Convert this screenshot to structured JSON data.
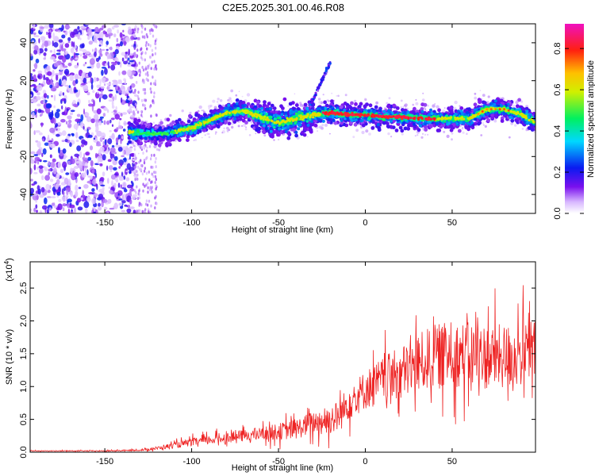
{
  "title": "C2E5.2025.301.00.46.R08",
  "chart_data": [
    {
      "type": "heatmap",
      "title": "C2E5.2025.301.00.46.R08",
      "xlabel": "Height of straight line (km)",
      "ylabel": "Frequency (Hz)",
      "xlim": [
        -193,
        98
      ],
      "ylim": [
        -50,
        50
      ],
      "xticks": [
        -150,
        -100,
        -50,
        0,
        50
      ],
      "xtick_labels": [
        "-150",
        "-100",
        "-50",
        "0",
        "50"
      ],
      "yticks": [
        -40,
        -20,
        0,
        20,
        40
      ],
      "ytick_labels": [
        "-40",
        "-20",
        "0",
        "20",
        "40"
      ],
      "colorbar": {
        "label": "Normalized spectral amplitude",
        "range": [
          0,
          0.92
        ],
        "ticks": [
          0.0,
          0.2,
          0.4,
          0.6,
          0.8
        ],
        "tick_labels": [
          "0.0",
          "0.2",
          "0.4",
          "0.6",
          "0.8"
        ]
      },
      "ridge": {
        "x": [
          -135,
          -125,
          -115,
          -100,
          -90,
          -80,
          -70,
          -60,
          -50,
          -40,
          -30,
          -20,
          -10,
          0,
          10,
          20,
          30,
          40,
          50,
          60,
          70,
          80,
          90,
          98
        ],
        "y": [
          -7,
          -8,
          -8,
          -5,
          -1,
          3,
          4,
          1,
          -2,
          0,
          2,
          3,
          2,
          2,
          1,
          1,
          0,
          0,
          0,
          0,
          5,
          5,
          2,
          -2
        ]
      },
      "note": "noisy speckle region for heights below about -130 km; weak branch near -25 km rising to ~30 Hz"
    },
    {
      "type": "line",
      "xlabel": "Height of straight line (km)",
      "ylabel": "SNR (10 * v/v)",
      "scale_label": "(x10",
      "scale_exp": "4",
      "scale_suffix": ")",
      "xlim": [
        -193,
        98
      ],
      "ylim": [
        0,
        2.9
      ],
      "xticks": [
        -150,
        -100,
        -50,
        0,
        50
      ],
      "xtick_labels": [
        "-150",
        "-100",
        "-50",
        "0",
        "50"
      ],
      "yticks": [
        0.0,
        0.5,
        1.0,
        1.5,
        2.0,
        2.5
      ],
      "ytick_labels": [
        "0.0",
        "0.5",
        "1.0",
        "1.5",
        "2.0",
        "2.5"
      ],
      "color": "#ee2222",
      "trend": {
        "x": [
          -193,
          -150,
          -130,
          -120,
          -100,
          -80,
          -60,
          -40,
          -30,
          -20,
          -15,
          -10,
          0,
          10,
          20,
          30,
          40,
          50,
          60,
          70,
          80,
          90,
          98
        ],
        "y": [
          0.02,
          0.02,
          0.03,
          0.06,
          0.15,
          0.22,
          0.28,
          0.35,
          0.45,
          0.5,
          0.55,
          0.75,
          0.95,
          1.1,
          1.2,
          1.35,
          1.45,
          1.5,
          1.48,
          1.45,
          1.45,
          1.5,
          1.55
        ]
      },
      "noise_amplitude": {
        "x": [
          -193,
          -130,
          -100,
          -60,
          -30,
          -15,
          0,
          20,
          40,
          98
        ],
        "a": [
          0.005,
          0.01,
          0.06,
          0.1,
          0.18,
          0.25,
          0.3,
          0.4,
          0.5,
          0.5
        ]
      }
    }
  ]
}
